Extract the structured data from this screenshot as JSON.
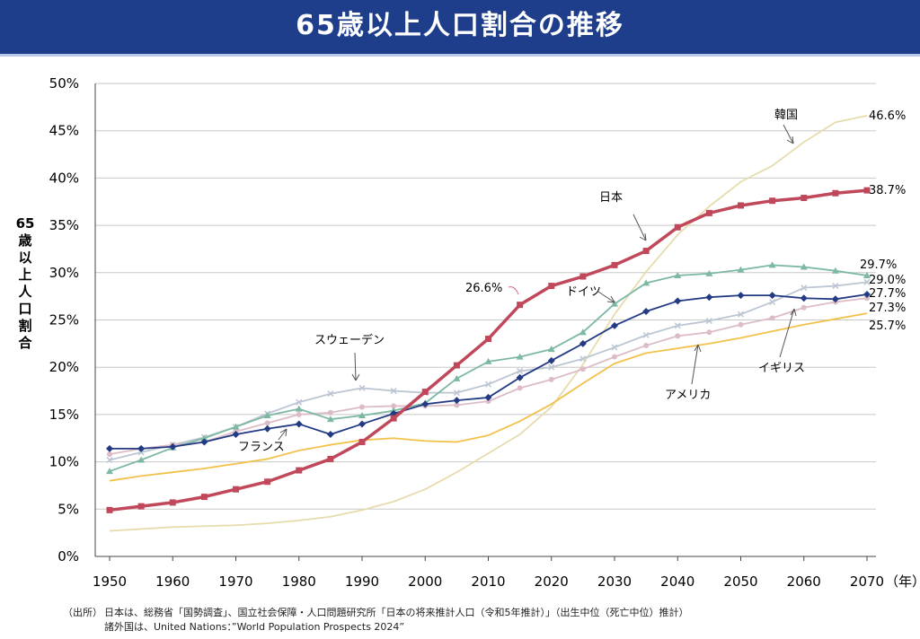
{
  "title": "65歳以上人口割合の推移",
  "chart_data": {
    "type": "line",
    "title": "65歳以上人口割合の推移",
    "ylabel": "65歳以上人口割合",
    "xlabel": "（年）",
    "ylim": [
      0,
      50
    ],
    "xlim": [
      1950,
      2070
    ],
    "y_ticks": [
      "0%",
      "5%",
      "10%",
      "15%",
      "20%",
      "25%",
      "30%",
      "35%",
      "40%",
      "45%",
      "50%"
    ],
    "x_ticks": [
      "1950",
      "1960",
      "1970",
      "1980",
      "1990",
      "2000",
      "2010",
      "2020",
      "2030",
      "2040",
      "2050",
      "2060",
      "2070"
    ],
    "grid": "horizontal",
    "x": [
      1950,
      1955,
      1960,
      1965,
      1970,
      1975,
      1980,
      1985,
      1990,
      1995,
      2000,
      2005,
      2010,
      2015,
      2020,
      2025,
      2030,
      2035,
      2040,
      2045,
      2050,
      2055,
      2060,
      2065,
      2070
    ],
    "series": [
      {
        "name": "日本",
        "color": "#c0485a",
        "marker": "square",
        "values": [
          4.9,
          5.3,
          5.7,
          6.3,
          7.1,
          7.9,
          9.1,
          10.3,
          12.1,
          14.6,
          17.4,
          20.2,
          23.0,
          26.6,
          28.6,
          29.6,
          30.8,
          32.3,
          34.8,
          36.3,
          37.1,
          37.6,
          37.9,
          38.4,
          38.7
        ]
      },
      {
        "name": "韓国",
        "color": "#e6dcae",
        "marker": "none",
        "values": [
          2.7,
          2.9,
          3.1,
          3.2,
          3.3,
          3.5,
          3.8,
          4.2,
          4.9,
          5.8,
          7.1,
          8.9,
          10.9,
          12.9,
          15.8,
          20.3,
          25.6,
          30.1,
          34.0,
          37.0,
          39.6,
          41.3,
          43.8,
          45.9,
          46.6
        ]
      },
      {
        "name": "ドイツ",
        "color": "#7cb8a3",
        "marker": "triangle",
        "values": [
          9.0,
          10.2,
          11.5,
          12.5,
          13.7,
          14.9,
          15.6,
          14.5,
          14.9,
          15.4,
          16.2,
          18.8,
          20.6,
          21.1,
          21.9,
          23.7,
          26.7,
          28.9,
          29.7,
          29.9,
          30.3,
          30.8,
          30.6,
          30.2,
          29.7
        ]
      },
      {
        "name": "スウェーデン",
        "color": "#bcc6d2",
        "marker": "x",
        "values": [
          10.2,
          11.0,
          11.8,
          12.6,
          13.7,
          15.1,
          16.3,
          17.2,
          17.8,
          17.5,
          17.3,
          17.3,
          18.2,
          19.6,
          20.0,
          20.9,
          22.1,
          23.4,
          24.4,
          24.9,
          25.6,
          26.9,
          28.4,
          28.6,
          29.0
        ]
      },
      {
        "name": "フランス",
        "color": "#233a84",
        "marker": "diamond",
        "values": [
          11.4,
          11.4,
          11.6,
          12.1,
          12.9,
          13.5,
          14.0,
          12.9,
          14.0,
          15.1,
          16.1,
          16.5,
          16.8,
          18.9,
          20.7,
          22.5,
          24.4,
          25.9,
          27.0,
          27.4,
          27.6,
          27.6,
          27.3,
          27.2,
          27.7
        ]
      },
      {
        "name": "イギリス",
        "color": "#dcbcc6",
        "marker": "circle",
        "values": [
          10.8,
          11.4,
          11.8,
          12.1,
          13.2,
          14.1,
          15.0,
          15.2,
          15.8,
          15.9,
          15.9,
          16.0,
          16.4,
          17.8,
          18.7,
          19.8,
          21.1,
          22.3,
          23.3,
          23.7,
          24.5,
          25.2,
          26.3,
          26.9,
          27.3
        ]
      },
      {
        "name": "アメリカ",
        "color": "#f2c14a",
        "marker": "none",
        "values": [
          8.0,
          8.5,
          8.9,
          9.3,
          9.8,
          10.3,
          11.2,
          11.8,
          12.3,
          12.5,
          12.2,
          12.1,
          12.8,
          14.3,
          16.1,
          18.3,
          20.4,
          21.5,
          22.0,
          22.5,
          23.1,
          23.8,
          24.5,
          25.1,
          25.7
        ]
      }
    ],
    "annotations": {
      "korea_label": "韓国",
      "japan_label": "日本",
      "germany_label": "ドイツ",
      "sweden_label": "スウェーデン",
      "france_label": "フランス",
      "uk_label": "イギリス",
      "us_label": "アメリカ",
      "japan_2015": "26.6%",
      "end_korea": "46.6%",
      "end_japan": "38.7%",
      "end_germany": "29.7%",
      "end_sweden": "29.0%",
      "end_france": "27.7%",
      "end_uk": "27.3%",
      "end_us": "25.7%"
    }
  },
  "source": {
    "label": "（出所）",
    "line1": "日本は、総務省「国勢調査」、国立社会保障・人口問題研究所「日本の将来推計人口（令和5年推計）」（出生中位（死亡中位）推計）",
    "line2": "諸外国は、United Nations：”World Population Prospects 2024”"
  }
}
